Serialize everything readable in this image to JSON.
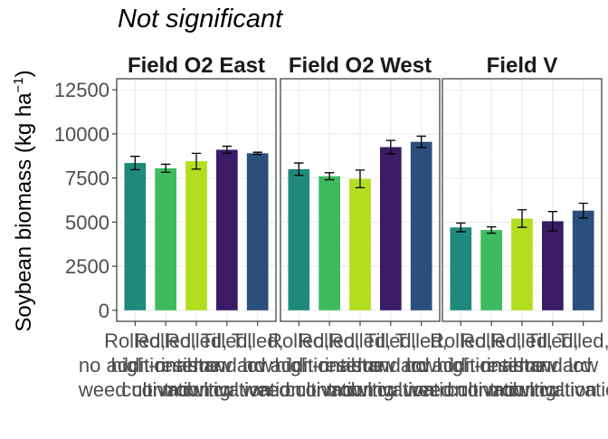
{
  "chart_data": {
    "type": "bar",
    "title": "Not significant",
    "ylabel": "Soybean biomass (kg ha",
    "ylabel_superscript": "−1",
    "ylabel_close": ")",
    "xlabel": "",
    "ylim": [
      0,
      12500
    ],
    "yticks": [
      0,
      2500,
      5000,
      7500,
      10000,
      12500
    ],
    "ytick_labels": [
      "0",
      "2500",
      "5000",
      "7500",
      "10000",
      "12500"
    ],
    "grid": true,
    "legend": "none",
    "categories": [
      [
        "Rolled,",
        "no additional",
        "weed control"
      ],
      [
        "Rolled,",
        "high-residue",
        "cultivation"
      ],
      [
        "Rolled,",
        "interrow",
        "mowing"
      ],
      [
        "Tilled,",
        "standard",
        "cultivation"
      ],
      [
        "Tilled,",
        "low",
        "cultivation"
      ]
    ],
    "colors": [
      "#1f8a7c",
      "#3dbb5e",
      "#b3de1f",
      "#3b1b66",
      "#2a4f7c"
    ],
    "panels": [
      {
        "name": "Field O2 East",
        "values": [
          8350,
          8050,
          8450,
          9100,
          8900
        ],
        "errors": [
          380,
          230,
          450,
          200,
          60
        ]
      },
      {
        "name": "Field O2 West",
        "values": [
          8000,
          7600,
          7450,
          9250,
          9550
        ],
        "errors": [
          350,
          200,
          500,
          380,
          320
        ]
      },
      {
        "name": "Field V",
        "values": [
          4700,
          4550,
          5200,
          5050,
          5650
        ],
        "errors": [
          250,
          180,
          500,
          550,
          420
        ]
      }
    ]
  }
}
